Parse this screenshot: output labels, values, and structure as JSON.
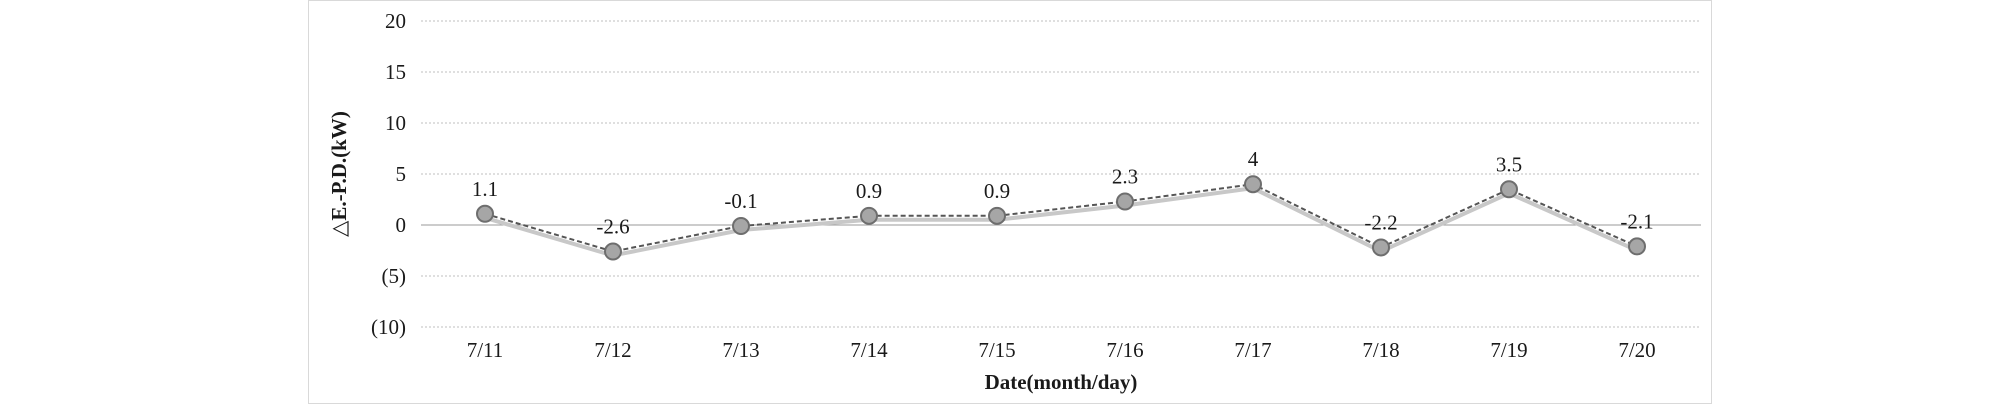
{
  "chart_data": {
    "type": "line",
    "categories": [
      "7/11",
      "7/12",
      "7/13",
      "7/14",
      "7/15",
      "7/16",
      "7/17",
      "7/18",
      "7/19",
      "7/20"
    ],
    "series": [
      {
        "values": [
          1.1,
          -2.6,
          -0.1,
          0.9,
          0.9,
          2.3,
          4,
          -2.2,
          3.5,
          -2.1
        ],
        "labels": [
          "1.1",
          "-2.6",
          "-0.1",
          "0.9",
          "0.9",
          "2.3",
          "4",
          "-2.2",
          "3.5",
          "-2.1"
        ]
      }
    ],
    "xlabel": "Date(month/day)",
    "ylabel": "△E.-P.D.(kW)",
    "ylim": [
      -10,
      20
    ],
    "yticks": [
      20,
      15,
      10,
      5,
      0,
      -5,
      -10
    ],
    "ytick_labels": [
      "20",
      "15",
      "10",
      "5",
      "0",
      "(5)",
      "(10)"
    ],
    "grid": true,
    "legend": "none",
    "colors": {
      "line": "#555555",
      "shadow": "#c8c8c8",
      "marker_fill": "#a6a6a6",
      "marker_edge": "#6e6e6e",
      "grid": "#bfbfbf"
    }
  }
}
